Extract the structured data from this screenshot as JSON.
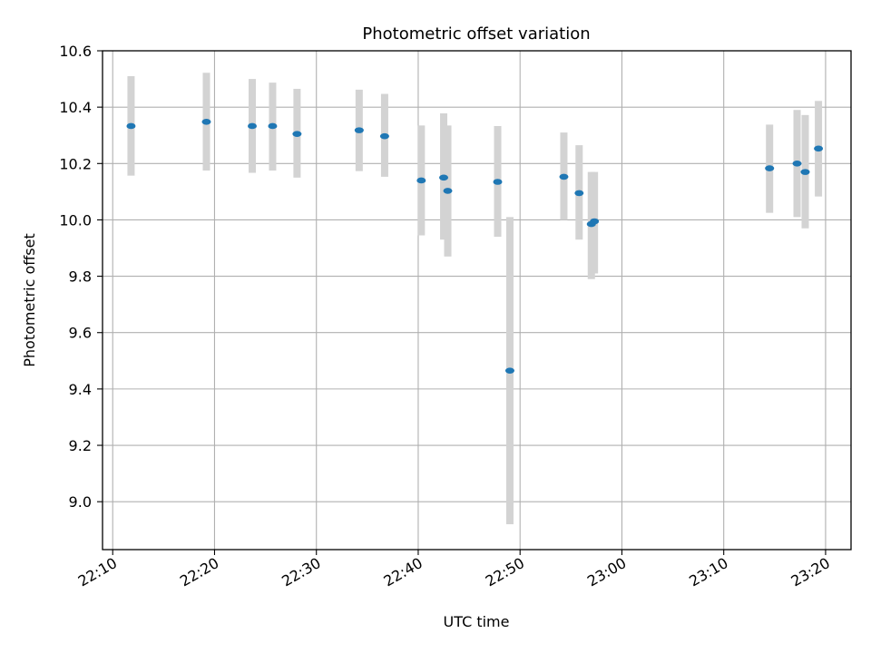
{
  "chart_data": {
    "type": "scatter",
    "title": "Photometric offset variation",
    "xlabel": "UTC time",
    "ylabel": "Photometric offset",
    "grid": true,
    "xlim": [
      "22:09:00",
      "23:22:30"
    ],
    "ylim": [
      8.83,
      10.6
    ],
    "x_ticks": [
      "22:10",
      "22:20",
      "22:30",
      "22:40",
      "22:50",
      "23:00",
      "23:10",
      "23:20"
    ],
    "y_ticks": [
      "9.0",
      "9.2",
      "9.4",
      "9.6",
      "9.8",
      "10.0",
      "10.2",
      "10.4",
      "10.6"
    ],
    "colors": {
      "marker": "#1f77b4",
      "errorbar": "#d3d3d3",
      "grid": "#b0b0b0"
    },
    "points": [
      {
        "x": "22:11:48",
        "y": 10.333,
        "ylow": 10.157,
        "yhigh": 10.51
      },
      {
        "x": "22:19:12",
        "y": 10.348,
        "ylow": 10.175,
        "yhigh": 10.522
      },
      {
        "x": "22:23:42",
        "y": 10.333,
        "ylow": 10.167,
        "yhigh": 10.5
      },
      {
        "x": "22:25:42",
        "y": 10.333,
        "ylow": 10.175,
        "yhigh": 10.487
      },
      {
        "x": "22:28:06",
        "y": 10.305,
        "ylow": 10.15,
        "yhigh": 10.465
      },
      {
        "x": "22:34:12",
        "y": 10.318,
        "ylow": 10.173,
        "yhigh": 10.462
      },
      {
        "x": "22:36:42",
        "y": 10.297,
        "ylow": 10.153,
        "yhigh": 10.447
      },
      {
        "x": "22:40:18",
        "y": 10.14,
        "ylow": 9.945,
        "yhigh": 10.335
      },
      {
        "x": "22:42:30",
        "y": 10.15,
        "ylow": 9.93,
        "yhigh": 10.378
      },
      {
        "x": "22:42:54",
        "y": 10.103,
        "ylow": 9.87,
        "yhigh": 10.335
      },
      {
        "x": "22:47:48",
        "y": 10.135,
        "ylow": 9.94,
        "yhigh": 10.333
      },
      {
        "x": "22:49:00",
        "y": 9.465,
        "ylow": 8.92,
        "yhigh": 10.01
      },
      {
        "x": "22:54:18",
        "y": 10.153,
        "ylow": 10.0,
        "yhigh": 10.31
      },
      {
        "x": "22:55:48",
        "y": 10.095,
        "ylow": 9.93,
        "yhigh": 10.265
      },
      {
        "x": "22:57:00",
        "y": 9.985,
        "ylow": 9.79,
        "yhigh": 10.17
      },
      {
        "x": "22:57:18",
        "y": 9.995,
        "ylow": 9.81,
        "yhigh": 10.17
      },
      {
        "x": "23:14:30",
        "y": 10.183,
        "ylow": 10.025,
        "yhigh": 10.338
      },
      {
        "x": "23:17:12",
        "y": 10.2,
        "ylow": 10.01,
        "yhigh": 10.39
      },
      {
        "x": "23:18:00",
        "y": 10.17,
        "ylow": 9.97,
        "yhigh": 10.372
      },
      {
        "x": "23:19:18",
        "y": 10.253,
        "ylow": 10.083,
        "yhigh": 10.422
      }
    ]
  }
}
